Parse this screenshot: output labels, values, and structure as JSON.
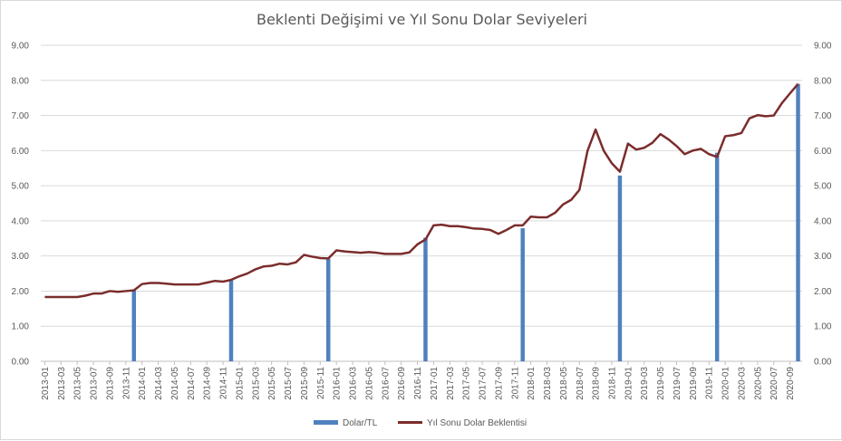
{
  "chart_data": {
    "type": "bar+line",
    "title": "Beklenti Değişimi ve Yıl Sonu Dolar Seviyeleri",
    "xlabel": "",
    "ylabel": "",
    "ylim": [
      0,
      9
    ],
    "y_ticks": [
      "0.00",
      "1.00",
      "2.00",
      "3.00",
      "4.00",
      "5.00",
      "6.00",
      "7.00",
      "8.00",
      "9.00"
    ],
    "secondary_y_ticks": [
      "0.00",
      "1.00",
      "2.00",
      "3.00",
      "4.00",
      "5.00",
      "6.00",
      "7.00",
      "8.00",
      "9.00"
    ],
    "grid": true,
    "legend_position": "bottom",
    "categories": [
      "2013-01",
      "2013-02",
      "2013-03",
      "2013-04",
      "2013-05",
      "2013-06",
      "2013-07",
      "2013-08",
      "2013-09",
      "2013-10",
      "2013-11",
      "2013-12",
      "2014-01",
      "2014-02",
      "2014-03",
      "2014-04",
      "2014-05",
      "2014-06",
      "2014-07",
      "2014-08",
      "2014-09",
      "2014-10",
      "2014-11",
      "2014-12",
      "2015-01",
      "2015-02",
      "2015-03",
      "2015-04",
      "2015-05",
      "2015-06",
      "2015-07",
      "2015-08",
      "2015-09",
      "2015-10",
      "2015-11",
      "2015-12",
      "2016-01",
      "2016-02",
      "2016-03",
      "2016-04",
      "2016-05",
      "2016-06",
      "2016-07",
      "2016-08",
      "2016-09",
      "2016-10",
      "2016-11",
      "2016-12",
      "2017-01",
      "2017-02",
      "2017-03",
      "2017-04",
      "2017-05",
      "2017-06",
      "2017-07",
      "2017-08",
      "2017-09",
      "2017-10",
      "2017-11",
      "2017-12",
      "2018-01",
      "2018-02",
      "2018-03",
      "2018-04",
      "2018-05",
      "2018-06",
      "2018-07",
      "2018-08",
      "2018-09",
      "2018-10",
      "2018-11",
      "2018-12",
      "2019-01",
      "2019-02",
      "2019-03",
      "2019-04",
      "2019-05",
      "2019-06",
      "2019-07",
      "2019-08",
      "2019-09",
      "2019-10",
      "2019-11",
      "2019-12",
      "2020-01",
      "2020-02",
      "2020-03",
      "2020-04",
      "2020-05",
      "2020-06",
      "2020-07",
      "2020-08",
      "2020-09",
      "2020-10"
    ],
    "x_tick_labels": [
      "2013-01",
      "2013-03",
      "2013-05",
      "2013-07",
      "2013-09",
      "2013-11",
      "2014-01",
      "2014-03",
      "2014-05",
      "2014-07",
      "2014-09",
      "2014-11",
      "2015-01",
      "2015-03",
      "2015-05",
      "2015-07",
      "2015-09",
      "2015-11",
      "2016-01",
      "2016-03",
      "2016-05",
      "2016-07",
      "2016-09",
      "2016-11",
      "2017-01",
      "2017-03",
      "2017-05",
      "2017-07",
      "2017-09",
      "2017-11",
      "2018-01",
      "2018-03",
      "2018-05",
      "2018-07",
      "2018-09",
      "2018-11",
      "2019-01",
      "2019-03",
      "2019-05",
      "2019-07",
      "2019-09",
      "2019-11",
      "2020-01",
      "2020-03",
      "2020-05",
      "2020-07",
      "2020-09"
    ],
    "series": [
      {
        "name": "Dolar/TL",
        "type": "bar",
        "color": "#4f81bd",
        "points": [
          {
            "x": "2013-12",
            "y": 2.05
          },
          {
            "x": "2014-12",
            "y": 2.32
          },
          {
            "x": "2015-12",
            "y": 2.92
          },
          {
            "x": "2016-12",
            "y": 3.52
          },
          {
            "x": "2017-12",
            "y": 3.79
          },
          {
            "x": "2018-12",
            "y": 5.29
          },
          {
            "x": "2019-12",
            "y": 5.94
          },
          {
            "x": "2020-10",
            "y": 7.9
          }
        ]
      },
      {
        "name": "Yıl Sonu Dolar Beklentisi",
        "type": "line",
        "color": "#7b2c2c",
        "values": [
          1.83,
          1.83,
          1.83,
          1.83,
          1.83,
          1.87,
          1.93,
          1.93,
          2.0,
          1.98,
          2.0,
          2.02,
          2.2,
          2.23,
          2.23,
          2.21,
          2.19,
          2.19,
          2.19,
          2.19,
          2.24,
          2.29,
          2.27,
          2.32,
          2.42,
          2.5,
          2.62,
          2.7,
          2.72,
          2.78,
          2.76,
          2.82,
          3.03,
          2.98,
          2.94,
          2.93,
          3.16,
          3.13,
          3.11,
          3.09,
          3.11,
          3.09,
          3.06,
          3.06,
          3.06,
          3.1,
          3.33,
          3.47,
          3.87,
          3.89,
          3.85,
          3.85,
          3.82,
          3.78,
          3.77,
          3.74,
          3.63,
          3.74,
          3.87,
          3.87,
          4.12,
          4.1,
          4.1,
          4.23,
          4.47,
          4.6,
          4.88,
          5.99,
          6.6,
          6.0,
          5.64,
          5.4,
          6.2,
          6.03,
          6.08,
          6.22,
          6.47,
          6.32,
          6.13,
          5.9,
          6.0,
          6.05,
          5.9,
          5.82,
          6.41,
          6.44,
          6.5,
          6.92,
          7.01,
          6.98,
          7.0,
          7.35,
          7.63,
          7.9
        ]
      }
    ]
  }
}
